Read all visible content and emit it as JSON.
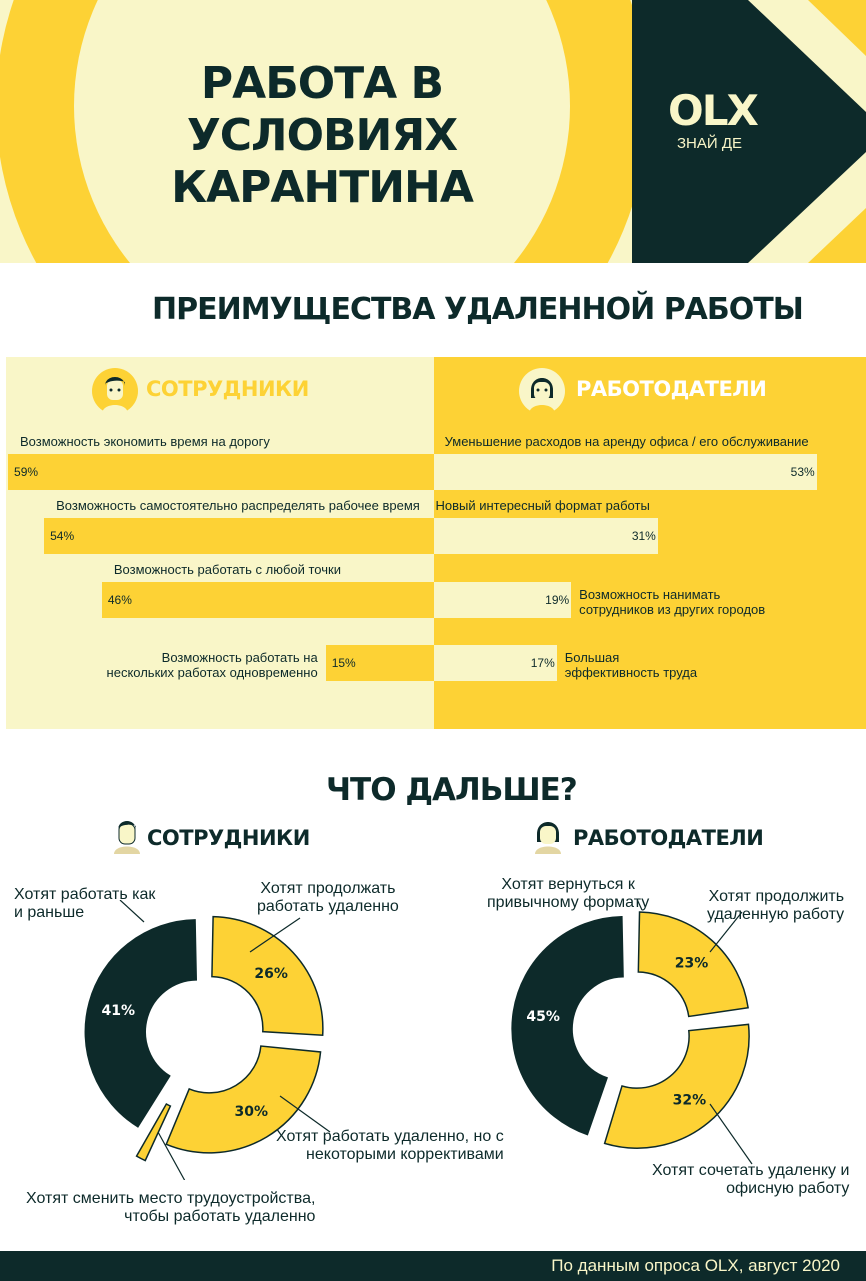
{
  "colors": {
    "dark": "#0d2a2a",
    "yellow": "#fdd235",
    "cream": "#f9f6c8"
  },
  "hero": {
    "title_lines": [
      "РАБОТА В",
      "УСЛОВИЯХ",
      "КАРАНТИНА"
    ],
    "brand": {
      "logo": "OLX",
      "tagline": "ЗНАЙ ДЕ"
    }
  },
  "advantages": {
    "title": "ПРЕИМУЩЕСТВА УДАЛЕННОЙ РАБОТЫ",
    "employees_label": "СОТРУДНИКИ",
    "employers_label": "РАБОТОДАТЕЛИ"
  },
  "next": {
    "title": "ЧТО ДАЛЬШЕ?",
    "employees_label": "СОТРУДНИКИ",
    "employers_label": "РАБОТОДАТЕЛИ"
  },
  "chart_data": [
    {
      "type": "bar",
      "series": [
        {
          "name": "СОТРУДНИКИ",
          "values": [
            59,
            54,
            46,
            15
          ]
        }
      ],
      "categories": [
        "Возможность экономить время на дорогу",
        "Возможность самостоятельно распределять рабочее время",
        "Возможность работать с любой точки",
        "Возможность работать на нескольких работах одновременно"
      ],
      "label_lines": [
        [
          "Возможность экономить время на дорогу"
        ],
        [
          "Возможность самостоятельно распределять рабочее время"
        ],
        [
          "Возможность работать с любой точки"
        ],
        [
          "Возможность работать на",
          "нескольких работах одновременно"
        ]
      ],
      "value_labels": [
        "59%",
        "54%",
        "46%",
        "15%"
      ],
      "ylim": [
        0,
        100
      ]
    },
    {
      "type": "bar",
      "series": [
        {
          "name": "РАБОТОДАТЕЛИ",
          "values": [
            53,
            31,
            19,
            17
          ]
        }
      ],
      "categories": [
        "Уменьшение расходов на аренду офиса / его обслуживание",
        "Новый интересный формат работы",
        "Возможность нанимать сотрудников из других городов",
        "Большая эффективность труда"
      ],
      "label_lines": [
        [
          "Уменьшение расходов на аренду офиса / его обслуживание"
        ],
        [
          "Новый интересный формат работы"
        ],
        [
          "Возможность нанимать",
          "сотрудников из других городов"
        ],
        [
          "Большая",
          "эффективность труда"
        ]
      ],
      "value_labels": [
        "53%",
        "31%",
        "19%",
        "17%"
      ],
      "ylim": [
        0,
        100
      ]
    },
    {
      "type": "pie",
      "series": [
        {
          "name": "СОТРУДНИКИ",
          "values": [
            26,
            30,
            2,
            41
          ]
        }
      ],
      "categories": [
        "Хотят продолжать работать удаленно",
        "Хотят работать удаленно, но с некоторыми коррективами",
        "Хотят сменить место трудоустройства, чтобы работать удаленно",
        "Хотят работать как и раньше"
      ],
      "label_lines": [
        [
          "Хотят продолжать",
          "работать удаленно"
        ],
        [
          "Хотят работать удаленно, но с",
          "некоторыми коррективами"
        ],
        [
          "Хотят сменить место трудоустройства,",
          "чтобы работать удаленно"
        ],
        [
          "Хотят работать как",
          "и раньше"
        ]
      ],
      "value_labels": [
        "26%",
        "30%",
        "2%",
        "41%"
      ]
    },
    {
      "type": "pie",
      "series": [
        {
          "name": "РАБОТОДАТЕЛИ",
          "values": [
            23,
            32,
            45
          ]
        }
      ],
      "categories": [
        "Хотят продолжить удаленную работу",
        "Хотят сочетать удаленку и офисную работу",
        "Хотят вернуться к привычному формату"
      ],
      "label_lines": [
        [
          "Хотят продолжить",
          "удаленную работу"
        ],
        [
          "Хотят сочетать удаленку и",
          "офисную работу"
        ],
        [
          "Хотят вернуться к",
          "привычному формату"
        ]
      ],
      "value_labels": [
        "23%",
        "32%",
        "45%"
      ]
    }
  ],
  "footer": "По данным опроса OLX, август 2020"
}
